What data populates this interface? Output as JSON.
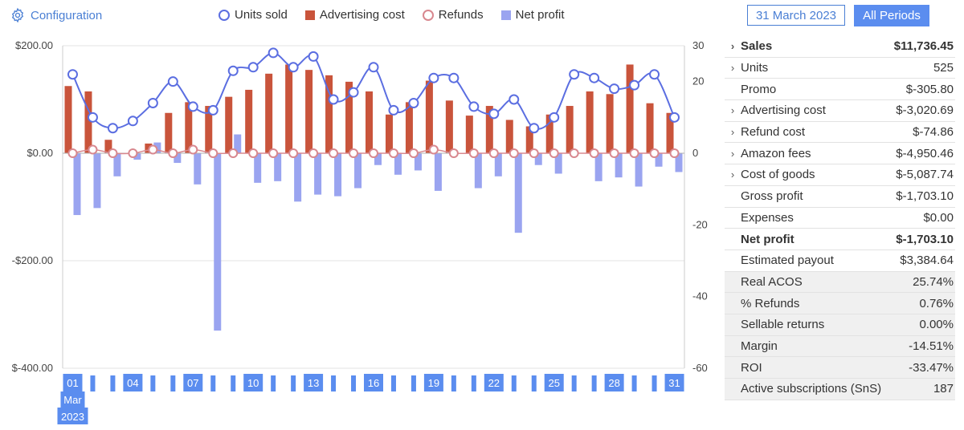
{
  "header": {
    "config_label": "Configuration",
    "date_label": "31 March 2023",
    "periods_label": "All Periods"
  },
  "legend": [
    {
      "name": "Units sold",
      "color": "#5b6ee1",
      "kind": "circle"
    },
    {
      "name": "Advertising cost",
      "color": "#c9543b",
      "kind": "square"
    },
    {
      "name": "Refunds",
      "color": "#d8888f",
      "kind": "circle"
    },
    {
      "name": "Net profit",
      "color": "#9aa4f0",
      "kind": "square"
    }
  ],
  "chart_data": {
    "type": "bar",
    "x": [
      1,
      2,
      3,
      4,
      5,
      6,
      7,
      8,
      9,
      10,
      11,
      12,
      13,
      14,
      15,
      16,
      17,
      18,
      19,
      20,
      21,
      22,
      23,
      24,
      25,
      26,
      27,
      28,
      29,
      30,
      31
    ],
    "x_tick_labels": [
      "01",
      "04",
      "07",
      "10",
      "13",
      "16",
      "19",
      "22",
      "25",
      "28",
      "31"
    ],
    "x_month_label": "Mar",
    "x_year_label": "2023",
    "y_left": {
      "min": -400,
      "max": 200,
      "ticks": [
        "$200.00",
        "$0.00",
        "-$200.00",
        "$-400.00"
      ],
      "tick_values": [
        200,
        0,
        -200,
        -400
      ]
    },
    "y_right": {
      "min": -60,
      "max": 30,
      "ticks": [
        "30",
        "20",
        "0",
        "-20",
        "-40",
        "-60"
      ],
      "tick_values": [
        30,
        20,
        0,
        -20,
        -40,
        -60
      ]
    },
    "grid": true,
    "series": [
      {
        "name": "Units sold",
        "type": "line",
        "axis": "right",
        "color": "#5b6ee1",
        "values": [
          22,
          10,
          7,
          9,
          14,
          20,
          13,
          12,
          23,
          24,
          28,
          24,
          27,
          15,
          17,
          24,
          12,
          14,
          21,
          21,
          13,
          11,
          15,
          7,
          10,
          22,
          21,
          18,
          19,
          22,
          10
        ]
      },
      {
        "name": "Advertising cost",
        "type": "bar",
        "axis": "left",
        "color": "#c9543b",
        "values": [
          125,
          115,
          25,
          0,
          18,
          75,
          95,
          88,
          105,
          118,
          148,
          165,
          155,
          145,
          133,
          115,
          72,
          95,
          135,
          98,
          70,
          88,
          62,
          50,
          72,
          88,
          115,
          110,
          165,
          93,
          75
        ]
      },
      {
        "name": "Refunds",
        "type": "line",
        "axis": "right",
        "color": "#d8888f",
        "values": [
          0,
          1,
          0,
          0,
          1,
          0,
          1,
          0,
          0,
          0,
          0,
          0,
          0,
          0,
          0,
          0,
          0,
          0,
          1,
          0,
          0,
          0,
          0,
          0,
          0,
          0,
          0,
          0,
          0,
          0,
          0
        ]
      },
      {
        "name": "Net profit",
        "type": "bar",
        "axis": "left",
        "color": "#9aa4f0",
        "values": [
          -115,
          -102,
          -43,
          -12,
          20,
          -18,
          -58,
          -330,
          35,
          -55,
          -52,
          -90,
          -77,
          -80,
          -65,
          -22,
          -40,
          -32,
          -70,
          0,
          -65,
          -43,
          -148,
          -22,
          -38,
          0,
          -52,
          -45,
          -62,
          -25,
          -35
        ]
      }
    ]
  },
  "summary": [
    {
      "label": "Sales",
      "value": "$11,736.45",
      "chevron": true,
      "bold": true,
      "shaded": false
    },
    {
      "label": "Units",
      "value": "525",
      "chevron": true,
      "bold": false,
      "shaded": false
    },
    {
      "label": "Promo",
      "value": "$-305.80",
      "chevron": false,
      "bold": false,
      "shaded": false
    },
    {
      "label": "Advertising cost",
      "value": "$-3,020.69",
      "chevron": true,
      "bold": false,
      "shaded": false
    },
    {
      "label": "Refund cost",
      "value": "$-74.86",
      "chevron": true,
      "bold": false,
      "shaded": false
    },
    {
      "label": "Amazon fees",
      "value": "$-4,950.46",
      "chevron": true,
      "bold": false,
      "shaded": false
    },
    {
      "label": "Cost of goods",
      "value": "$-5,087.74",
      "chevron": true,
      "bold": false,
      "shaded": false
    },
    {
      "label": "Gross profit",
      "value": "$-1,703.10",
      "chevron": false,
      "bold": false,
      "shaded": false
    },
    {
      "label": "Expenses",
      "value": "$0.00",
      "chevron": false,
      "bold": false,
      "shaded": false
    },
    {
      "label": "Net profit",
      "value": "$-1,703.10",
      "chevron": false,
      "bold": true,
      "shaded": false
    },
    {
      "label": "Estimated payout",
      "value": "$3,384.64",
      "chevron": false,
      "bold": false,
      "shaded": false
    },
    {
      "label": "Real ACOS",
      "value": "25.74%",
      "chevron": false,
      "bold": false,
      "shaded": true
    },
    {
      "label": "% Refunds",
      "value": "0.76%",
      "chevron": false,
      "bold": false,
      "shaded": true
    },
    {
      "label": "Sellable returns",
      "value": "0.00%",
      "chevron": false,
      "bold": false,
      "shaded": true
    },
    {
      "label": "Margin",
      "value": "-14.51%",
      "chevron": false,
      "bold": false,
      "shaded": true
    },
    {
      "label": "ROI",
      "value": "-33.47%",
      "chevron": false,
      "bold": false,
      "shaded": true
    },
    {
      "label": "Active subscriptions (SnS)",
      "value": "187",
      "chevron": false,
      "bold": false,
      "shaded": true
    }
  ]
}
